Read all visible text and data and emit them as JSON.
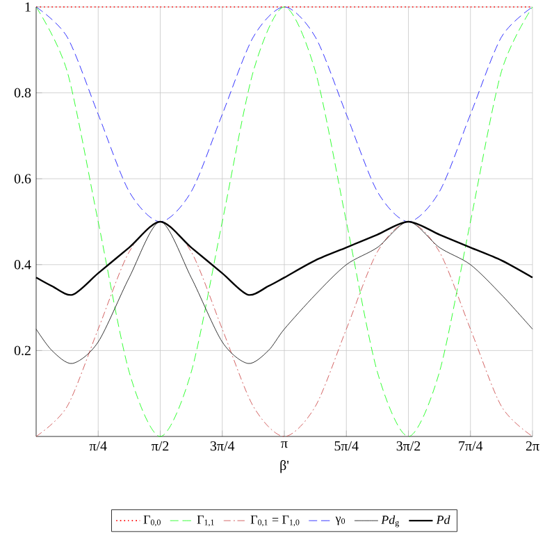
{
  "chart_data": {
    "type": "line",
    "xlabel": "β'",
    "xlim": [
      0,
      6.2832
    ],
    "ylim": [
      0,
      1
    ],
    "xticks": [
      {
        "value": 0.7854,
        "label": "π/4"
      },
      {
        "value": 1.5708,
        "label": "π/2"
      },
      {
        "value": 2.3562,
        "label": "3π/4"
      },
      {
        "value": 3.1416,
        "label": "π"
      },
      {
        "value": 3.927,
        "label": "5π/4"
      },
      {
        "value": 4.7124,
        "label": "3π/2"
      },
      {
        "value": 5.4978,
        "label": "7π/4"
      },
      {
        "value": 6.2832,
        "label": "2π"
      }
    ],
    "yticks": [
      0.2,
      0.4,
      0.6,
      0.8,
      1
    ],
    "grid": true,
    "legend": "bottom",
    "x": [
      0,
      0.3927,
      0.7854,
      1.1781,
      1.5708,
      1.9635,
      2.3562,
      2.7489,
      3.1416,
      3.5343,
      3.927,
      4.3197,
      4.7124,
      5.1051,
      5.4978,
      5.8905,
      6.2832
    ],
    "series": [
      {
        "name": "Γ$_{0,0}$",
        "color": "#ff0000",
        "line_style": "dotted",
        "values": [
          1,
          1,
          1,
          1,
          1,
          1,
          1,
          1,
          1,
          1,
          1,
          1,
          1,
          1,
          1,
          1,
          1
        ]
      },
      {
        "name": "Γ$_{1,1}$",
        "color": "#00ff00",
        "line_style": "dashed",
        "values": [
          1,
          0.85,
          0.5,
          0.15,
          0,
          0.15,
          0.5,
          0.85,
          1,
          0.85,
          0.5,
          0.15,
          0,
          0.15,
          0.5,
          0.85,
          1
        ]
      },
      {
        "name": "Γ$_{0,1}$ = Γ$_{1,0}$",
        "color": "#c83c3c",
        "line_style": "dashdot",
        "values": [
          0,
          0.07,
          0.25,
          0.43,
          0.5,
          0.43,
          0.25,
          0.07,
          0,
          0.07,
          0.25,
          0.43,
          0.5,
          0.43,
          0.25,
          0.07,
          0
        ]
      },
      {
        "name": "γ$_{0}$",
        "color": "#0000ff",
        "line_style": "dashed",
        "values": [
          1,
          0.93,
          0.75,
          0.57,
          0.5,
          0.57,
          0.75,
          0.93,
          1,
          0.93,
          0.75,
          0.57,
          0.5,
          0.57,
          0.75,
          0.93,
          1
        ]
      },
      {
        "name": "*Pd*$_{g}$",
        "color": "#000000",
        "line_style": "solid",
        "x": [
          0,
          0.2,
          0.46,
          0.785,
          1.178,
          1.571,
          1.963,
          2.356,
          2.68,
          2.94,
          3.1416,
          3.534,
          3.927,
          4.32,
          4.712,
          5.105,
          5.498,
          5.89,
          6.2832
        ],
        "values": [
          0.25,
          0.2,
          0.17,
          0.22,
          0.37,
          0.5,
          0.37,
          0.22,
          0.17,
          0.2,
          0.25,
          0.33,
          0.4,
          0.44,
          0.5,
          0.44,
          0.4,
          0.33,
          0.25
        ]
      },
      {
        "name": "*Pd*",
        "color": "#000000",
        "line_style": "solid",
        "x": [
          0,
          0.2,
          0.46,
          0.785,
          1.178,
          1.571,
          1.963,
          2.356,
          2.68,
          2.94,
          3.1416,
          3.534,
          3.927,
          4.32,
          4.712,
          5.105,
          5.498,
          5.89,
          6.2832
        ],
        "values": [
          0.37,
          0.35,
          0.33,
          0.38,
          0.44,
          0.5,
          0.44,
          0.38,
          0.33,
          0.35,
          0.37,
          0.41,
          0.44,
          0.47,
          0.5,
          0.47,
          0.44,
          0.41,
          0.37
        ]
      }
    ]
  }
}
